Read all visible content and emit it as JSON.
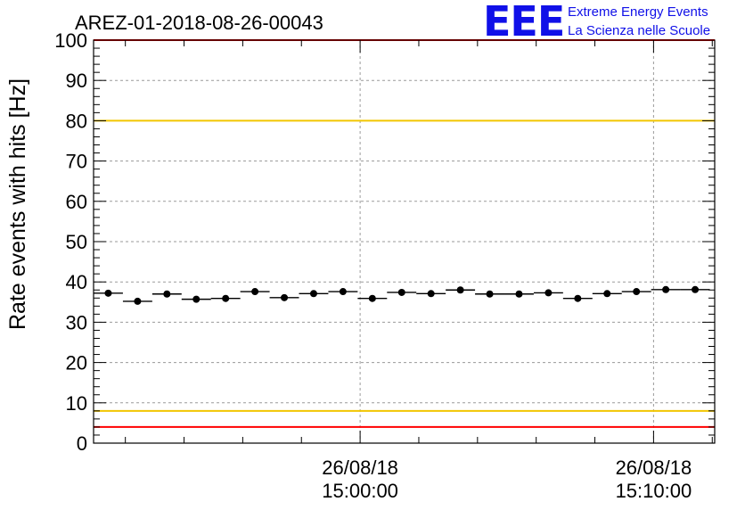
{
  "chart_data": {
    "type": "scatter",
    "title": "AREZ-01-2018-08-26-00043",
    "ylabel": "Rate events with hits [Hz]",
    "xlabel": "",
    "ylim": [
      0,
      100
    ],
    "yticks": [
      0,
      10,
      20,
      30,
      40,
      50,
      60,
      70,
      80,
      90,
      100
    ],
    "grid": true,
    "xlim": [
      "26/08/18 14:50:55",
      "26/08/18 15:12:05"
    ],
    "x_tick_labels": [
      {
        "date": "26/08/18",
        "time": "15:00:00",
        "t": "15:00:00"
      },
      {
        "date": "26/08/18",
        "time": "15:10:00",
        "t": "15:10:00"
      }
    ],
    "reference_lines": [
      {
        "y": 100,
        "color": "#ff0000"
      },
      {
        "y": 80,
        "color": "#f2c600"
      },
      {
        "y": 8,
        "color": "#f2c600"
      },
      {
        "y": 4,
        "color": "#ff0000"
      }
    ],
    "bin_width_seconds": 60,
    "series": [
      {
        "marker_color": "#000000",
        "points": [
          {
            "x": "14:51:25",
            "y": 37.2
          },
          {
            "x": "14:52:25",
            "y": 35.2
          },
          {
            "x": "14:53:25",
            "y": 37.0
          },
          {
            "x": "14:54:25",
            "y": 35.7
          },
          {
            "x": "14:55:25",
            "y": 35.9
          },
          {
            "x": "14:56:25",
            "y": 37.6
          },
          {
            "x": "14:57:25",
            "y": 36.1
          },
          {
            "x": "14:58:25",
            "y": 37.1
          },
          {
            "x": "14:59:25",
            "y": 37.6
          },
          {
            "x": "15:00:25",
            "y": 35.9
          },
          {
            "x": "15:01:25",
            "y": 37.4
          },
          {
            "x": "15:02:25",
            "y": 37.1
          },
          {
            "x": "15:03:25",
            "y": 38.0
          },
          {
            "x": "15:04:25",
            "y": 37.0
          },
          {
            "x": "15:05:25",
            "y": 37.0
          },
          {
            "x": "15:06:25",
            "y": 37.3
          },
          {
            "x": "15:07:25",
            "y": 35.9
          },
          {
            "x": "15:08:25",
            "y": 37.1
          },
          {
            "x": "15:09:25",
            "y": 37.6
          },
          {
            "x": "15:10:25",
            "y": 38.1
          },
          {
            "x": "15:11:25",
            "y": 38.1
          }
        ]
      }
    ]
  },
  "logo": {
    "letters": "EEE",
    "line1": "Extreme Energy Events",
    "line2": "La Scienza nelle Scuole"
  }
}
